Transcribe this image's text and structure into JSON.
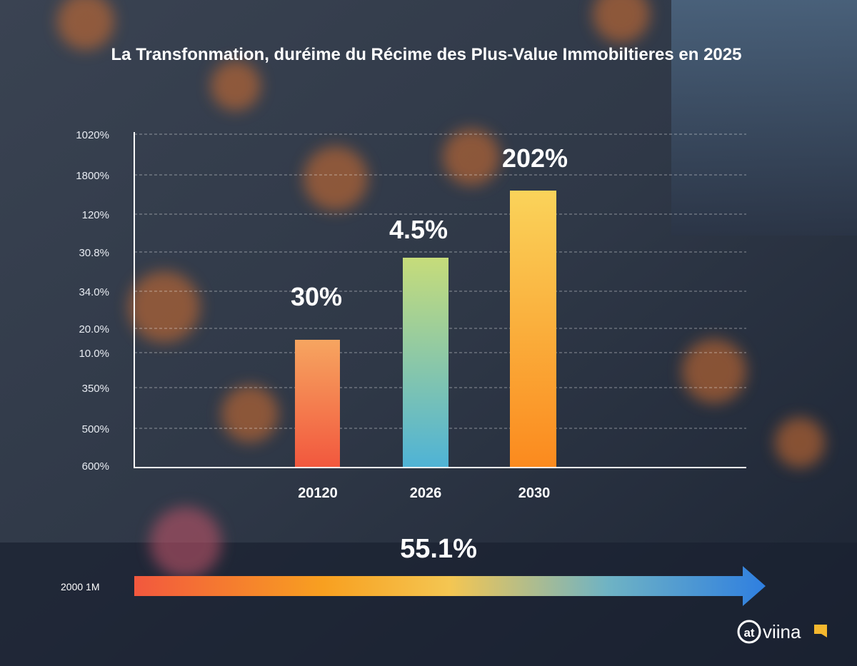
{
  "title": "La Transfonmation, duréime du Récime des Plus-Value Immobiltieres en 2025",
  "y_axis_labels": [
    "1020%",
    "1800%",
    "120%",
    "30.8%",
    "34.0%",
    "20.0%",
    "10.0%",
    "350%",
    "500%",
    "600%"
  ],
  "bars": [
    {
      "category": "20120",
      "label": "30%"
    },
    {
      "category": "2026",
      "label": "4.5%"
    },
    {
      "category": "2030",
      "label": "202%"
    }
  ],
  "arrow_label": "55.1%",
  "arrow_start_label": "2000 1M",
  "logo_icon": "at",
  "logo_text": "viina"
}
